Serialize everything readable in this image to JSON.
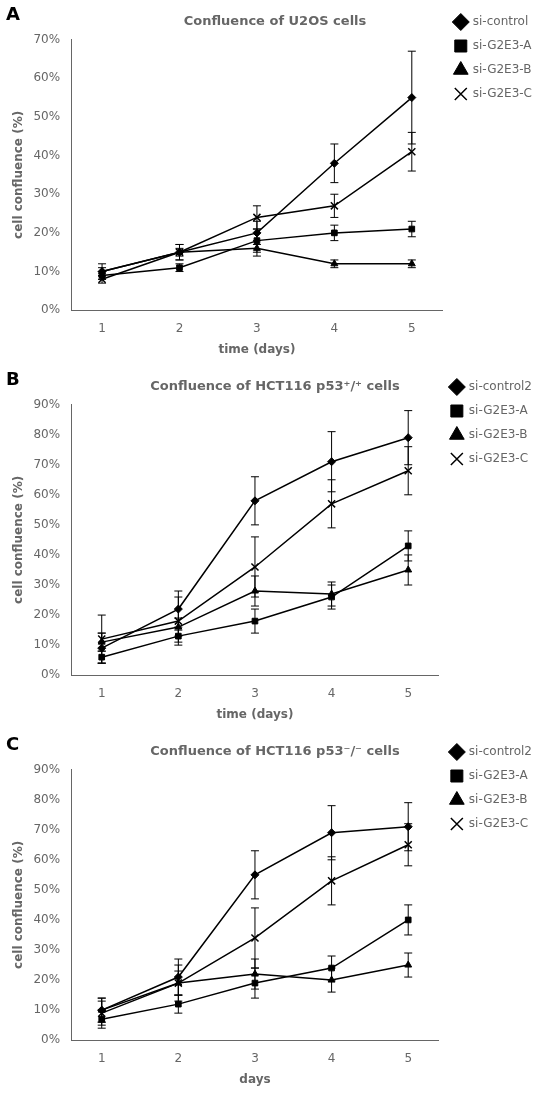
{
  "chart_data": [
    {
      "type": "line",
      "title": "Confluence of U2OS cells",
      "xlabel": "time (days)",
      "ylabel": "cell confluence (%)",
      "annotations": [
        "A"
      ],
      "x": [
        1,
        2,
        3,
        4,
        5
      ],
      "xlim": [
        0.6,
        5.4
      ],
      "xticks": [
        1,
        2,
        3,
        4,
        5
      ],
      "ylim": [
        0,
        0.7
      ],
      "yticks": [
        {
          "value": 0.0,
          "label": "0%"
        },
        {
          "value": 0.1,
          "label": "10%"
        },
        {
          "value": 0.2,
          "label": "20%"
        },
        {
          "value": 0.3,
          "label": "30%"
        },
        {
          "value": 0.4,
          "label": "40%"
        },
        {
          "value": 0.5,
          "label": "50%"
        },
        {
          "value": 0.6,
          "label": "60%"
        },
        {
          "value": 0.7,
          "label": "70%"
        }
      ],
      "grid": false,
      "legend": "right",
      "series": [
        {
          "name": "si-control",
          "color": "#000000",
          "marker": "diamond",
          "values": [
            0.1,
            0.15,
            0.2,
            0.38,
            0.55
          ],
          "yerr": [
            0.02,
            0.02,
            0.03,
            0.05,
            0.12
          ]
        },
        {
          "name": "si-G2E3-A",
          "color": "#000000",
          "marker": "square",
          "values": [
            0.09,
            0.11,
            0.18,
            0.2,
            0.21
          ],
          "yerr": [
            0.01,
            0.01,
            0.03,
            0.02,
            0.02
          ]
        },
        {
          "name": "si-G2E3-B",
          "color": "#000000",
          "marker": "triangle",
          "values": [
            0.1,
            0.15,
            0.16,
            0.12,
            0.12
          ],
          "yerr": [
            0.01,
            0.02,
            0.02,
            0.01,
            0.01
          ]
        },
        {
          "name": "si-G2E3-C",
          "color": "#000000",
          "marker": "x",
          "values": [
            0.08,
            0.15,
            0.24,
            0.27,
            0.41
          ],
          "yerr": [
            0.01,
            0.01,
            0.03,
            0.03,
            0.05
          ]
        }
      ]
    },
    {
      "type": "line",
      "title": "Confluence of HCT116 p53⁺/⁺ cells",
      "xlabel": "time (days)",
      "ylabel": "cell confluence (%)",
      "annotations": [
        "B"
      ],
      "x": [
        1,
        2,
        3,
        4,
        5
      ],
      "xlim": [
        0.6,
        5.4
      ],
      "xticks": [
        1,
        2,
        3,
        4,
        5
      ],
      "ylim": [
        0,
        0.9
      ],
      "yticks": [
        {
          "value": 0.0,
          "label": "0%"
        },
        {
          "value": 0.1,
          "label": "10%"
        },
        {
          "value": 0.2,
          "label": "20%"
        },
        {
          "value": 0.3,
          "label": "30%"
        },
        {
          "value": 0.4,
          "label": "40%"
        },
        {
          "value": 0.5,
          "label": "50%"
        },
        {
          "value": 0.6,
          "label": "60%"
        },
        {
          "value": 0.7,
          "label": "70%"
        },
        {
          "value": 0.8,
          "label": "80%"
        },
        {
          "value": 0.9,
          "label": "90%"
        }
      ],
      "grid": false,
      "legend": "right",
      "series": [
        {
          "name": "si-control2",
          "color": "#000000",
          "marker": "diamond",
          "values": [
            0.09,
            0.22,
            0.58,
            0.71,
            0.79
          ],
          "yerr": [
            0.05,
            0.06,
            0.08,
            0.1,
            0.09
          ]
        },
        {
          "name": "si-G2E3-A",
          "color": "#000000",
          "marker": "square",
          "values": [
            0.06,
            0.13,
            0.18,
            0.26,
            0.43
          ],
          "yerr": [
            0.02,
            0.02,
            0.04,
            0.04,
            0.05
          ]
        },
        {
          "name": "si-G2E3-B",
          "color": "#000000",
          "marker": "triangle",
          "values": [
            0.11,
            0.16,
            0.28,
            0.27,
            0.35
          ],
          "yerr": [
            0.03,
            0.03,
            0.05,
            0.04,
            0.05
          ]
        },
        {
          "name": "si-G2E3-C",
          "color": "#000000",
          "marker": "x",
          "values": [
            0.12,
            0.18,
            0.36,
            0.57,
            0.68
          ],
          "yerr": [
            0.08,
            0.08,
            0.1,
            0.08,
            0.08
          ]
        }
      ]
    },
    {
      "type": "line",
      "title": "Confluence of HCT116 p53⁻/⁻ cells",
      "xlabel": "days",
      "ylabel": "cell confluence (%)",
      "annotations": [
        "C"
      ],
      "x": [
        1,
        2,
        3,
        4,
        5
      ],
      "xlim": [
        0.6,
        5.4
      ],
      "xticks": [
        1,
        2,
        3,
        4,
        5
      ],
      "ylim": [
        0,
        0.9
      ],
      "yticks": [
        {
          "value": 0.0,
          "label": "0%"
        },
        {
          "value": 0.1,
          "label": "10%"
        },
        {
          "value": 0.2,
          "label": "20%"
        },
        {
          "value": 0.3,
          "label": "30%"
        },
        {
          "value": 0.4,
          "label": "40%"
        },
        {
          "value": 0.5,
          "label": "50%"
        },
        {
          "value": 0.6,
          "label": "60%"
        },
        {
          "value": 0.7,
          "label": "70%"
        },
        {
          "value": 0.8,
          "label": "80%"
        },
        {
          "value": 0.9,
          "label": "90%"
        }
      ],
      "grid": false,
      "legend": "right",
      "series": [
        {
          "name": "si-control2",
          "color": "#000000",
          "marker": "diamond",
          "values": [
            0.1,
            0.21,
            0.55,
            0.69,
            0.71
          ],
          "yerr": [
            0.04,
            0.06,
            0.08,
            0.09,
            0.08
          ]
        },
        {
          "name": "si-G2E3-A",
          "color": "#000000",
          "marker": "square",
          "values": [
            0.07,
            0.12,
            0.19,
            0.24,
            0.4
          ],
          "yerr": [
            0.03,
            0.03,
            0.05,
            0.04,
            0.05
          ]
        },
        {
          "name": "si-G2E3-B",
          "color": "#000000",
          "marker": "triangle",
          "values": [
            0.1,
            0.19,
            0.22,
            0.2,
            0.25
          ],
          "yerr": [
            0.04,
            0.04,
            0.05,
            0.04,
            0.04
          ]
        },
        {
          "name": "si-G2E3-C",
          "color": "#000000",
          "marker": "x",
          "values": [
            0.09,
            0.19,
            0.34,
            0.53,
            0.65
          ],
          "yerr": [
            0.04,
            0.06,
            0.1,
            0.08,
            0.07
          ]
        }
      ]
    }
  ]
}
